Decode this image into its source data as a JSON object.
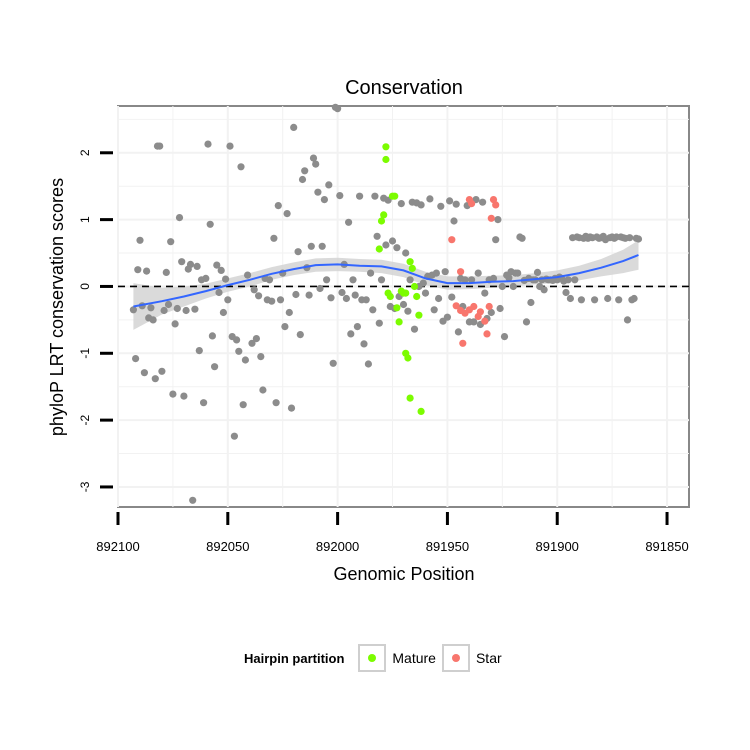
{
  "chart_data": {
    "type": "scatter",
    "title": "Conservation",
    "xlabel": "Genomic Position",
    "ylabel": "phyloP LRT conservation scores",
    "xlim": [
      892100,
      891840
    ],
    "ylim": [
      -3.3,
      2.7
    ],
    "x_reversed": true,
    "xticks": [
      892100,
      892050,
      892000,
      891950,
      891900,
      891850
    ],
    "xtick_labels": [
      "892100",
      "892050",
      "892000",
      "891950",
      "891900",
      "891850"
    ],
    "yticks": [
      -3,
      -2,
      -1,
      0,
      1,
      2
    ],
    "ytick_labels": [
      "-3",
      "-2",
      "-1",
      "0",
      "1",
      "2"
    ],
    "reference_line": {
      "y": 0,
      "style": "dashed"
    },
    "legend": {
      "title": "Hairpin partition",
      "placement": "bottom",
      "entries": [
        {
          "label": "Mature",
          "color": "#7CFC00"
        },
        {
          "label": "Star",
          "color": "#F8766D"
        }
      ]
    },
    "colors": {
      "other": "#8c8c8c",
      "Mature": "#7CFC00",
      "Star": "#F8766D",
      "smooth": "#3366FF",
      "ribbon": "#d3d3d3",
      "grid": "#f2f2f2",
      "frame": "#888888"
    },
    "series": [
      {
        "name": "Other",
        "points": [
          [
            892093,
            -0.35
          ],
          [
            892092,
            -1.08
          ],
          [
            892091,
            0.25
          ],
          [
            892090,
            0.69
          ],
          [
            892089,
            -0.29
          ],
          [
            892088,
            -1.29
          ],
          [
            892087,
            0.23
          ],
          [
            892086,
            -0.47
          ],
          [
            892085,
            -0.32
          ],
          [
            892084,
            -0.5
          ],
          [
            892083,
            -1.38
          ],
          [
            892082,
            2.1
          ],
          [
            892081,
            2.1
          ],
          [
            892080,
            -1.27
          ],
          [
            892079,
            -0.36
          ],
          [
            892078,
            0.21
          ],
          [
            892077,
            -0.27
          ],
          [
            892076,
            0.67
          ],
          [
            892075,
            -1.61
          ],
          [
            892074,
            -0.56
          ],
          [
            892073,
            -0.33
          ],
          [
            892072,
            1.03
          ],
          [
            892071,
            0.37
          ],
          [
            892070,
            -1.64
          ],
          [
            892069,
            -0.36
          ],
          [
            892068,
            0.26
          ],
          [
            892067,
            0.33
          ],
          [
            892066,
            -3.2
          ],
          [
            892065,
            -0.34
          ],
          [
            892064,
            0.3
          ],
          [
            892063,
            -0.96
          ],
          [
            892062,
            0.1
          ],
          [
            892061,
            -1.74
          ],
          [
            892060,
            0.12
          ],
          [
            892059,
            2.13
          ],
          [
            892058,
            0.93
          ],
          [
            892057,
            -0.74
          ],
          [
            892056,
            -1.2
          ],
          [
            892055,
            0.32
          ],
          [
            892054,
            -0.09
          ],
          [
            892053,
            0.24
          ],
          [
            892052,
            -0.39
          ],
          [
            892051,
            0.11
          ],
          [
            892050,
            -0.2
          ],
          [
            892049,
            2.1
          ],
          [
            892048,
            -0.75
          ],
          [
            892047,
            -2.24
          ],
          [
            892046,
            -0.8
          ],
          [
            892045,
            -0.97
          ],
          [
            892044,
            1.79
          ],
          [
            892043,
            -1.77
          ],
          [
            892042,
            -1.1
          ],
          [
            892041,
            0.17
          ],
          [
            892039,
            -0.85
          ],
          [
            892038,
            -0.05
          ],
          [
            892037,
            -0.78
          ],
          [
            892036,
            -0.14
          ],
          [
            892035,
            -1.05
          ],
          [
            892034,
            -1.55
          ],
          [
            892033,
            0.12
          ],
          [
            892032,
            -0.2
          ],
          [
            892031,
            0.1
          ],
          [
            892030,
            -0.22
          ],
          [
            892029,
            0.72
          ],
          [
            892028,
            -1.74
          ],
          [
            892027,
            1.21
          ],
          [
            892026,
            -0.2
          ],
          [
            892025,
            0.2
          ],
          [
            892024,
            -0.6
          ],
          [
            892023,
            1.09
          ],
          [
            892022,
            -0.39
          ],
          [
            892021,
            -1.82
          ],
          [
            892020,
            2.38
          ],
          [
            892019,
            -0.12
          ],
          [
            892018,
            0.52
          ],
          [
            892017,
            -0.72
          ],
          [
            892016,
            1.6
          ],
          [
            892015,
            1.73
          ],
          [
            892014,
            0.28
          ],
          [
            892013,
            -0.13
          ],
          [
            892012,
            0.6
          ],
          [
            892011,
            1.92
          ],
          [
            892010,
            1.83
          ],
          [
            892009,
            1.41
          ],
          [
            892008,
            -0.03
          ],
          [
            892007,
            0.6
          ],
          [
            892006,
            1.3
          ],
          [
            892005,
            0.1
          ],
          [
            892004,
            1.52
          ],
          [
            892003,
            -0.17
          ],
          [
            892002,
            -1.15
          ],
          [
            892001,
            2.68
          ],
          [
            892000,
            2.66
          ],
          [
            891999,
            1.36
          ],
          [
            891998,
            -0.09
          ],
          [
            891997,
            0.33
          ],
          [
            891996,
            -0.18
          ],
          [
            891995,
            0.96
          ],
          [
            891994,
            -0.71
          ],
          [
            891993,
            0.1
          ],
          [
            891992,
            -0.13
          ],
          [
            891991,
            -0.6
          ],
          [
            891990,
            1.35
          ],
          [
            891989,
            -0.2
          ],
          [
            891988,
            -0.86
          ],
          [
            891987,
            -0.2
          ],
          [
            891986,
            -1.16
          ],
          [
            891985,
            0.2
          ],
          [
            891984,
            -0.35
          ],
          [
            891983,
            1.35
          ],
          [
            891982,
            0.75
          ],
          [
            891981,
            -0.55
          ],
          [
            891980,
            0.1
          ],
          [
            891979,
            1.32
          ],
          [
            891978,
            0.62
          ],
          [
            891977,
            1.29
          ],
          [
            891976,
            -0.3
          ],
          [
            891975,
            0.68
          ],
          [
            891974,
            -0.33
          ],
          [
            891973,
            0.58
          ],
          [
            891972,
            -0.15
          ],
          [
            891971,
            1.24
          ],
          [
            891970,
            -0.27
          ],
          [
            891969,
            0.5
          ],
          [
            891968,
            -0.37
          ],
          [
            891967,
            0.1
          ],
          [
            891966,
            1.26
          ],
          [
            891965,
            -0.64
          ],
          [
            891964,
            1.25
          ],
          [
            891963,
            0.0
          ],
          [
            891962,
            1.22
          ],
          [
            891961,
            0.05
          ],
          [
            891960,
            -0.1
          ],
          [
            891959,
            0.15
          ],
          [
            891958,
            1.31
          ],
          [
            891957,
            0.17
          ],
          [
            891956,
            -0.35
          ],
          [
            891955,
            0.2
          ],
          [
            891954,
            -0.18
          ],
          [
            891953,
            1.2
          ],
          [
            891952,
            -0.52
          ],
          [
            891951,
            0.22
          ],
          [
            891950,
            -0.46
          ],
          [
            891949,
            1.28
          ],
          [
            891948,
            -0.16
          ],
          [
            891947,
            0.98
          ],
          [
            891946,
            1.23
          ],
          [
            891945,
            -0.68
          ],
          [
            891944,
            0.12
          ],
          [
            891943,
            -0.3
          ],
          [
            891942,
            0.1
          ],
          [
            891941,
            1.21
          ],
          [
            891940,
            -0.53
          ],
          [
            891939,
            0.1
          ],
          [
            891938,
            -0.53
          ],
          [
            891937,
            1.3
          ],
          [
            891936,
            0.2
          ],
          [
            891935,
            -0.57
          ],
          [
            891934,
            1.26
          ],
          [
            891933,
            -0.1
          ],
          [
            891932,
            -0.48
          ],
          [
            891931,
            0.1
          ],
          [
            891930,
            -0.39
          ],
          [
            891929,
            0.12
          ],
          [
            891928,
            0.7
          ],
          [
            891927,
            1.0
          ],
          [
            891926,
            -0.33
          ],
          [
            891925,
            0.0
          ],
          [
            891924,
            -0.75
          ],
          [
            891923,
            0.17
          ],
          [
            891922,
            0.13
          ],
          [
            891921,
            0.22
          ],
          [
            891920,
            0.0
          ],
          [
            891919,
            0.2
          ],
          [
            891918,
            0.2
          ],
          [
            891917,
            0.74
          ],
          [
            891916,
            0.72
          ],
          [
            891915,
            0.09
          ],
          [
            891914,
            -0.53
          ],
          [
            891913,
            0.12
          ],
          [
            891912,
            -0.24
          ],
          [
            891911,
            0.1
          ],
          [
            891910,
            0.1
          ],
          [
            891909,
            0.21
          ],
          [
            891908,
            0.0
          ],
          [
            891907,
            0.1
          ],
          [
            891906,
            -0.05
          ],
          [
            891905,
            0.11
          ],
          [
            891904,
            0.1
          ],
          [
            891903,
            0.1
          ],
          [
            891902,
            0.09
          ],
          [
            891901,
            0.12
          ],
          [
            891900,
            0.1
          ],
          [
            891899,
            0.14
          ],
          [
            891898,
            0.12
          ],
          [
            891897,
            0.08
          ],
          [
            891896,
            -0.09
          ],
          [
            891895,
            0.1
          ],
          [
            891894,
            -0.18
          ],
          [
            891893,
            0.73
          ],
          [
            891892,
            0.1
          ],
          [
            891891,
            0.74
          ],
          [
            891890,
            0.73
          ],
          [
            891889,
            -0.2
          ],
          [
            891888,
            0.72
          ],
          [
            891887,
            0.75
          ],
          [
            891886,
            0.72
          ],
          [
            891885,
            0.74
          ],
          [
            891884,
            0.73
          ],
          [
            891883,
            -0.2
          ],
          [
            891882,
            0.74
          ],
          [
            891881,
            0.72
          ],
          [
            891880,
            0.73
          ],
          [
            891879,
            0.75
          ],
          [
            891878,
            0.7
          ],
          [
            891877,
            -0.18
          ],
          [
            891876,
            0.73
          ],
          [
            891875,
            0.74
          ],
          [
            891874,
            0.72
          ],
          [
            891873,
            0.74
          ],
          [
            891872,
            -0.2
          ],
          [
            891871,
            0.74
          ],
          [
            891870,
            0.73
          ],
          [
            891869,
            0.72
          ],
          [
            891868,
            -0.5
          ],
          [
            891867,
            0.73
          ],
          [
            891866,
            -0.2
          ],
          [
            891865,
            -0.18
          ],
          [
            891864,
            0.72
          ],
          [
            891863,
            0.71
          ]
        ]
      },
      {
        "name": "Mature",
        "points": [
          [
            891978,
            2.09
          ],
          [
            891978,
            1.9
          ],
          [
            891979,
            1.07
          ],
          [
            891980,
            0.98
          ],
          [
            891981,
            0.56
          ],
          [
            891975,
            1.35
          ],
          [
            891974,
            1.35
          ],
          [
            891976,
            -0.15
          ],
          [
            891977,
            -0.1
          ],
          [
            891973,
            -0.32
          ],
          [
            891972,
            -0.53
          ],
          [
            891970,
            -0.1
          ],
          [
            891969,
            -0.1
          ],
          [
            891969,
            -1.0
          ],
          [
            891968,
            -1.07
          ],
          [
            891967,
            -1.67
          ],
          [
            891966,
            0.27
          ],
          [
            891965,
            0.0
          ],
          [
            891964,
            -0.15
          ],
          [
            891963,
            -0.43
          ],
          [
            891962,
            -1.87
          ],
          [
            891967,
            0.37
          ],
          [
            891971,
            -0.07
          ]
        ]
      },
      {
        "name": "Star",
        "points": [
          [
            891948,
            0.7
          ],
          [
            891944,
            0.22
          ],
          [
            891946,
            -0.29
          ],
          [
            891944,
            -0.36
          ],
          [
            891943,
            -0.85
          ],
          [
            891940,
            1.3
          ],
          [
            891939,
            1.24
          ],
          [
            891938,
            -0.3
          ],
          [
            891936,
            -0.45
          ],
          [
            891935,
            -0.38
          ],
          [
            891933,
            -0.52
          ],
          [
            891932,
            -0.71
          ],
          [
            891930,
            1.02
          ],
          [
            891929,
            1.3
          ],
          [
            891928,
            1.22
          ],
          [
            891931,
            -0.3
          ],
          [
            891940,
            -0.35
          ],
          [
            891942,
            -0.4
          ]
        ]
      }
    ],
    "smooth": {
      "x": [
        892093,
        892080,
        892070,
        892060,
        892050,
        892040,
        892030,
        892020,
        892010,
        892000,
        891990,
        891980,
        891970,
        891960,
        891950,
        891940,
        891930,
        891920,
        891910,
        891900,
        891890,
        891880,
        891870,
        891863
      ],
      "y": [
        -0.3,
        -0.22,
        -0.15,
        -0.07,
        0.02,
        0.1,
        0.19,
        0.26,
        0.32,
        0.33,
        0.31,
        0.3,
        0.24,
        0.12,
        0.05,
        0.05,
        0.07,
        0.08,
        0.11,
        0.14,
        0.2,
        0.28,
        0.38,
        0.47
      ],
      "ci_low": [
        -0.65,
        -0.42,
        -0.3,
        -0.18,
        -0.08,
        0.0,
        0.1,
        0.17,
        0.22,
        0.23,
        0.22,
        0.2,
        0.14,
        0.02,
        -0.05,
        -0.04,
        -0.02,
        0.0,
        0.03,
        0.05,
        0.09,
        0.15,
        0.2,
        0.25
      ],
      "ci_high": [
        0.05,
        -0.02,
        0.0,
        0.04,
        0.12,
        0.2,
        0.29,
        0.36,
        0.42,
        0.43,
        0.41,
        0.4,
        0.34,
        0.22,
        0.15,
        0.15,
        0.16,
        0.17,
        0.2,
        0.24,
        0.31,
        0.41,
        0.55,
        0.69
      ]
    }
  }
}
